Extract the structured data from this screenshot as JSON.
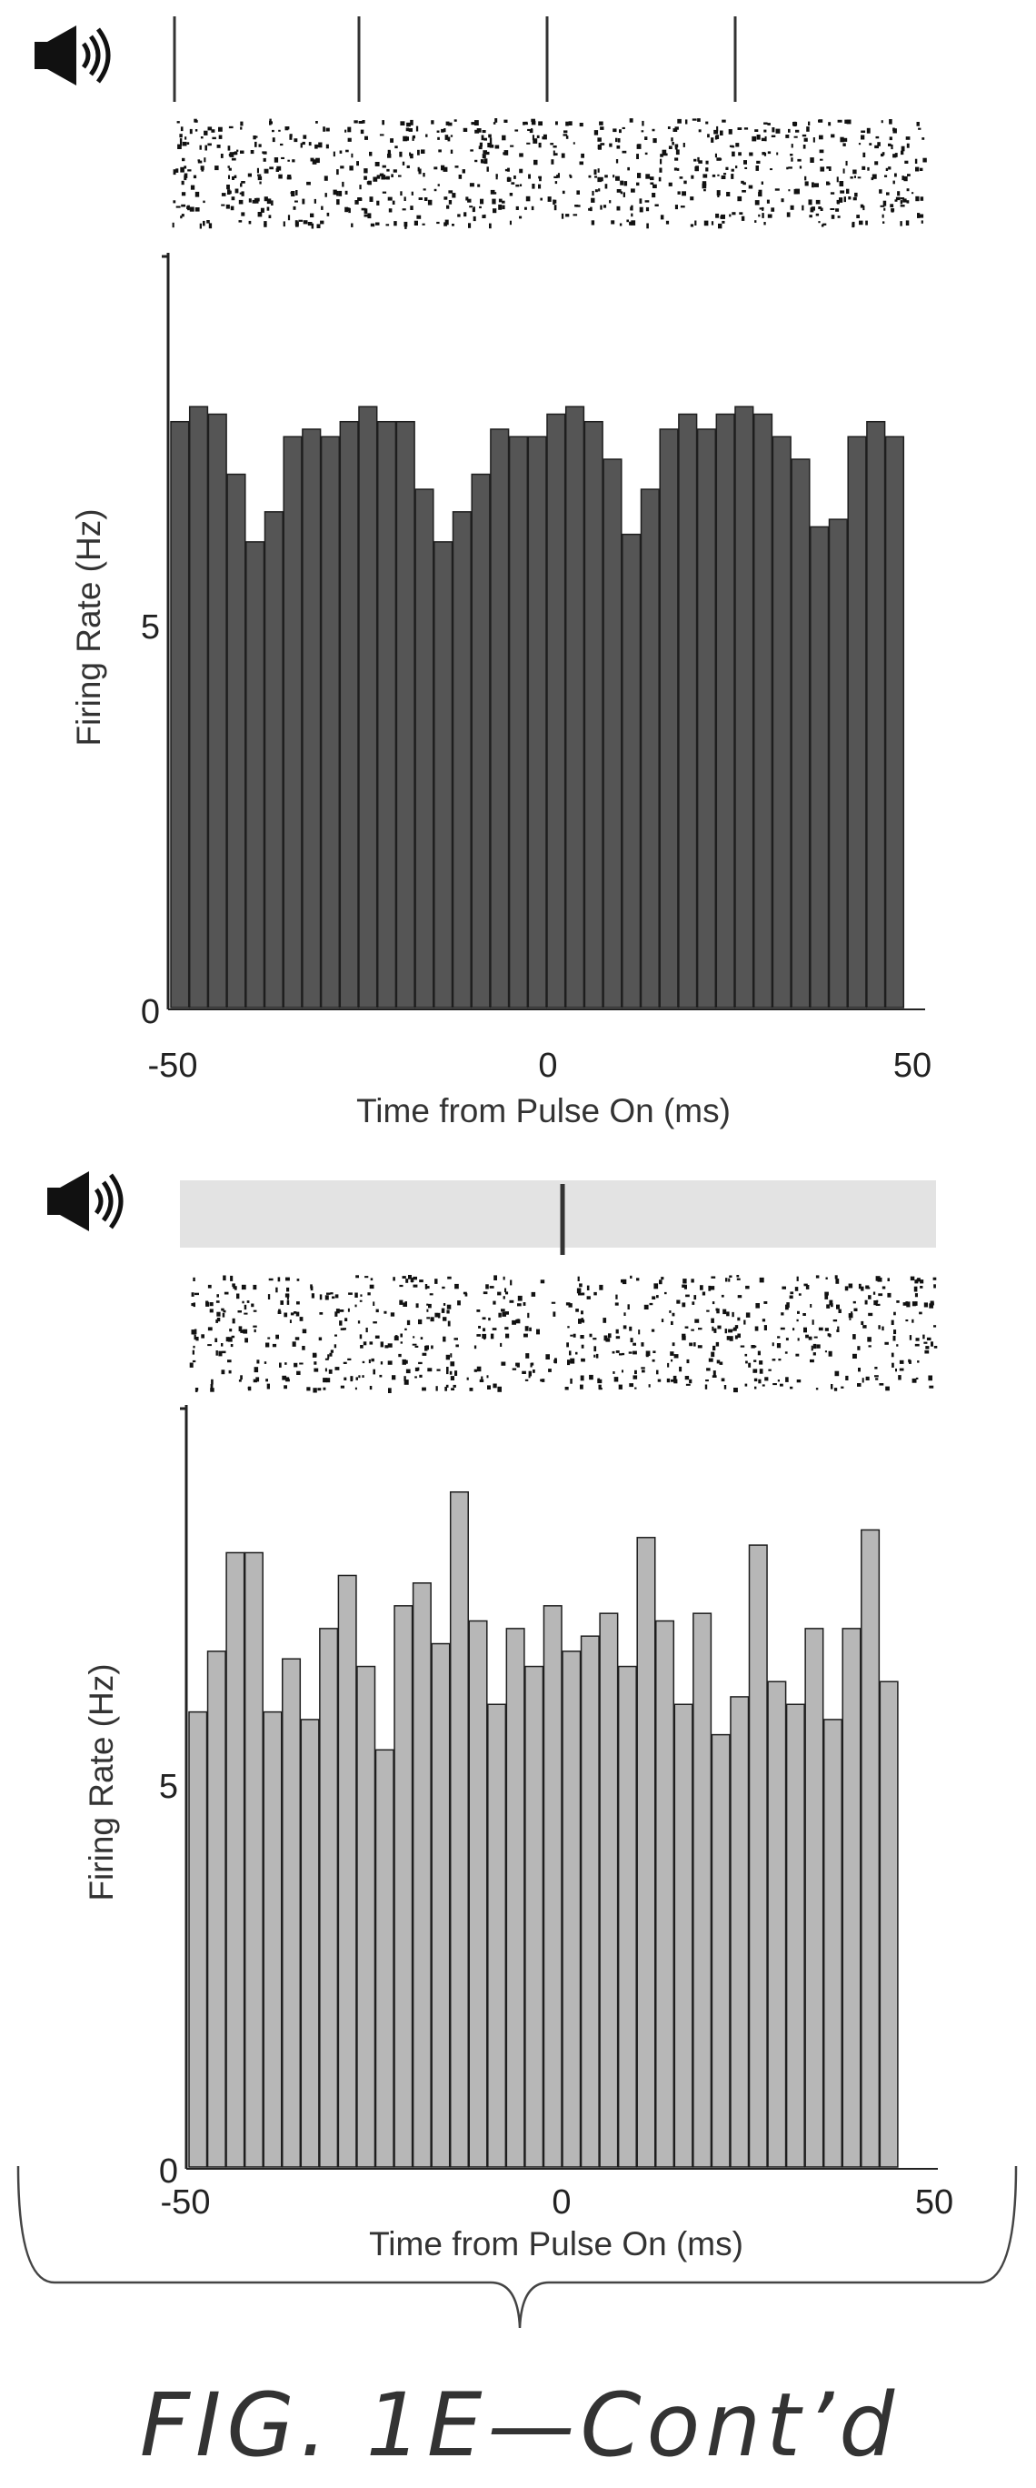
{
  "figure_label": "FIG. 1E—Cont’d",
  "chart_data": [
    {
      "type": "bar",
      "panel": "top",
      "stimulus": "periodic tone pulses",
      "stimulus_icon": "speaker-icon",
      "pulse_times": [
        -50,
        -25,
        0,
        25
      ],
      "bin_width": 2.5,
      "bin_start": -50,
      "values": [
        7.8,
        8.0,
        7.9,
        7.1,
        6.2,
        6.6,
        7.6,
        7.7,
        7.6,
        7.8,
        8.0,
        7.8,
        7.8,
        6.9,
        6.2,
        6.6,
        7.1,
        7.7,
        7.6,
        7.6,
        7.9,
        8.0,
        7.8,
        7.3,
        6.3,
        6.9,
        7.7,
        7.9,
        7.7,
        7.9,
        8.0,
        7.9,
        7.6,
        7.3,
        6.4,
        6.5,
        7.6,
        7.8,
        7.6
      ],
      "xlim": [
        -50,
        50
      ],
      "ylim": [
        0,
        10
      ],
      "xticks": [
        "-50",
        "0",
        "50"
      ],
      "yticks": [
        "0",
        "5"
      ],
      "xlabel": "Time from Pulse On (ms)",
      "ylabel": "Firing Rate (Hz)",
      "bar_color": "#555555"
    },
    {
      "type": "bar",
      "panel": "bottom",
      "stimulus": "single click on noise background",
      "stimulus_icon": "speaker-icon",
      "pulse_times": [
        0
      ],
      "bin_width": 2.5,
      "bin_start": -50,
      "values": [
        6.0,
        6.8,
        8.1,
        8.1,
        6.0,
        6.7,
        5.9,
        7.1,
        7.8,
        6.6,
        5.5,
        7.4,
        7.7,
        6.9,
        8.9,
        7.2,
        6.1,
        7.1,
        6.6,
        7.4,
        6.8,
        7.0,
        7.3,
        6.6,
        8.3,
        7.2,
        6.1,
        7.3,
        5.7,
        6.2,
        8.2,
        6.4,
        6.1,
        7.1,
        5.9,
        7.1,
        8.4,
        6.4
      ],
      "xlim": [
        -50,
        50
      ],
      "ylim": [
        0,
        10
      ],
      "xticks": [
        "-50",
        "0",
        "50"
      ],
      "yticks": [
        "0",
        "5"
      ],
      "xlabel": "Time from Pulse On (ms)",
      "ylabel": "Firing Rate (Hz)",
      "bar_color": "#b7b7b7"
    }
  ]
}
